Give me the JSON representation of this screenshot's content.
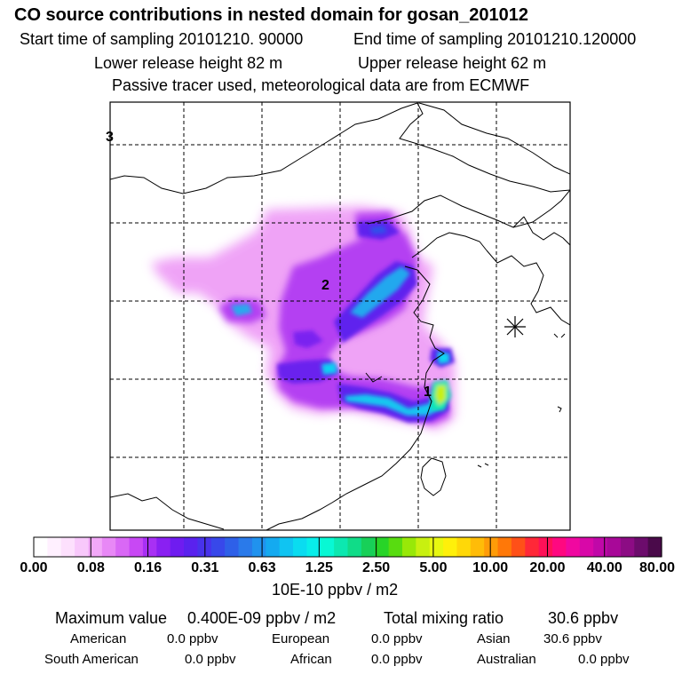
{
  "header": {
    "title": "CO  source contributions in nested domain for gosan_201012",
    "start_label": "Start time of sampling 20101210. 90000",
    "end_label": "End time of sampling 20101210.120000",
    "lower_label": "Lower release height   82 m",
    "upper_label": "Upper release height   62 m",
    "tracer_label": "Passive tracer used, meteorological data are from ECMWF"
  },
  "map": {
    "labels": {
      "one": "1",
      "two": "2",
      "three": "3"
    },
    "receptor_marker": "asterisk-icon"
  },
  "colorbar": {
    "ticks": [
      "0.00",
      "0.08",
      "0.16",
      "0.31",
      "0.63",
      "1.25",
      "2.50",
      "5.00",
      "10.00",
      "20.00",
      "40.00",
      "80.00"
    ],
    "units": "10E-10 ppbv / m2",
    "colors": [
      "#ffffff",
      "#fff0ff",
      "#fde0fd",
      "#f8c8fb",
      "#f2a8f8",
      "#e888f6",
      "#d968f5",
      "#c848f4",
      "#a830f4",
      "#8a20f2",
      "#6f1cf0",
      "#5a22ee",
      "#4832ec",
      "#3848ea",
      "#2e60e8",
      "#2a7aea",
      "#2092ee",
      "#14aaf0",
      "#10c4f2",
      "#0adcf0",
      "#08eeea",
      "#08f8d4",
      "#0ce8b0",
      "#10dc88",
      "#18d058",
      "#28d428",
      "#58dc10",
      "#98e808",
      "#c8f010",
      "#e8f810",
      "#fff00a",
      "#ffd808",
      "#ffbc08",
      "#ff9c08",
      "#ff7808",
      "#ff5018",
      "#ff2838",
      "#ff1058",
      "#ff0880",
      "#f008a0",
      "#d808a8",
      "#c008a8",
      "#a80898",
      "#8c0c84",
      "#6c0c6c",
      "#4a0a4a"
    ]
  },
  "stats": {
    "max_label": "Maximum value",
    "max_value": "0.400E-09 ppbv / m2",
    "total_label": "Total mixing ratio",
    "total_value": "30.6 ppbv",
    "rows": [
      {
        "a_name": "American",
        "a_val": "0.0 ppbv",
        "b_name": "European",
        "b_val": "0.0 ppbv",
        "c_name": "Asian",
        "c_val": "30.6 ppbv"
      },
      {
        "a_name": "South American",
        "a_val": "0.0 ppbv",
        "b_name": "African",
        "b_val": "0.0 ppbv",
        "c_name": "Australian",
        "c_val": "0.0 ppbv"
      }
    ]
  }
}
